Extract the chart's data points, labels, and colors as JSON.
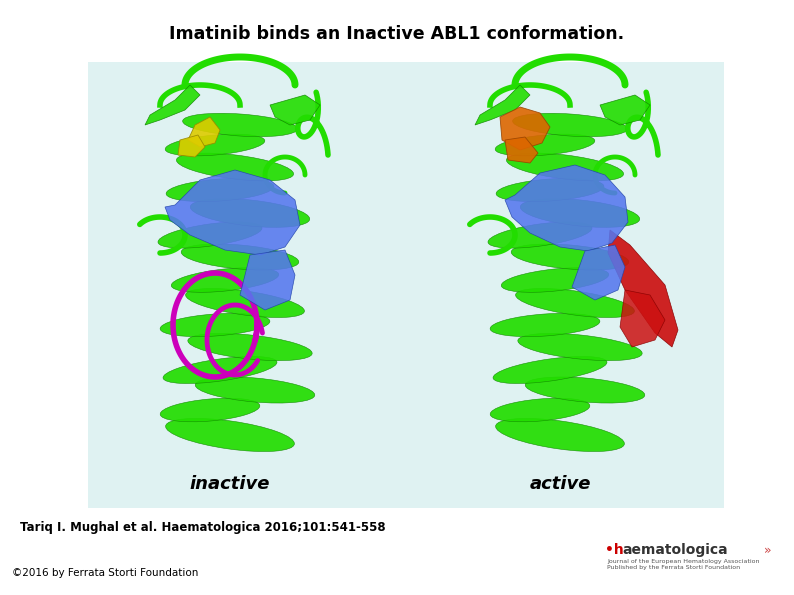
{
  "title": "Imatinib binds an Inactive ABL1 conformation.",
  "title_fontsize": 12.5,
  "title_fontweight": "bold",
  "citation": "Tariq I. Mughal et al. Haematologica 2016;101:541-558",
  "citation_fontsize": 8.5,
  "citation_fontweight": "bold",
  "copyright": "©2016 by Ferrata Storti Foundation",
  "copyright_fontsize": 7.5,
  "background_color": "#ffffff",
  "image_bg_color": "#dff2f2",
  "inactive_label": "inactive",
  "active_label": "active",
  "label_fontsize": 13,
  "green_color": "#22dd00",
  "green_dark": "#118800",
  "blue_color": "#5577ee",
  "yellow_color": "#ddcc00",
  "magenta_color": "#cc00bb",
  "orange_color": "#dd6600",
  "red_color": "#cc1111"
}
